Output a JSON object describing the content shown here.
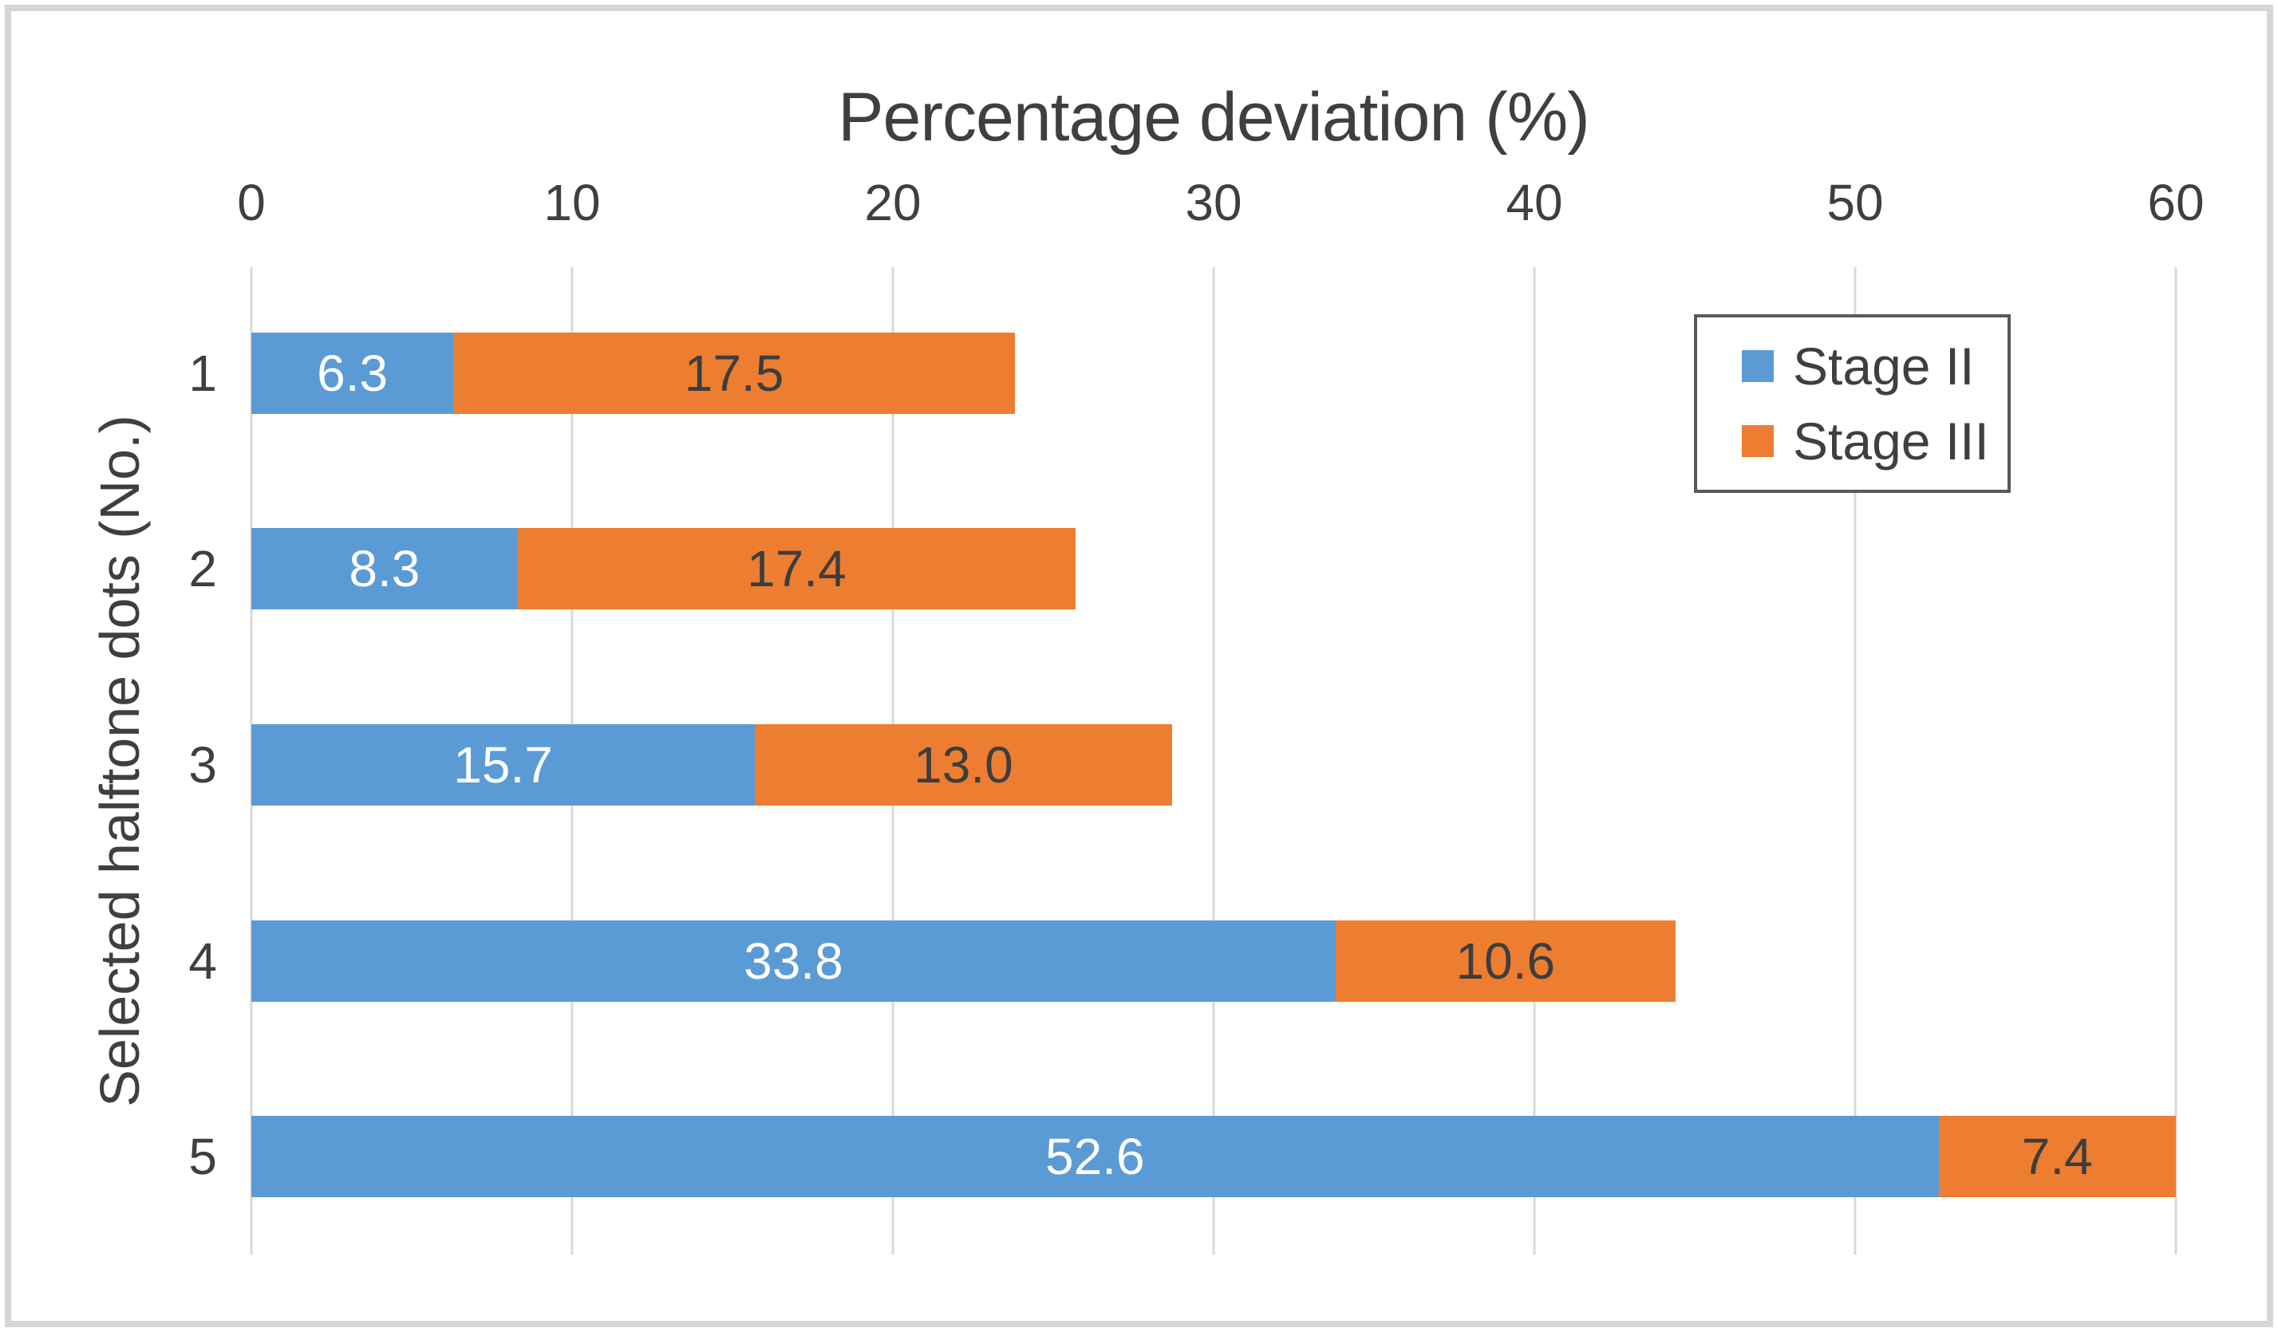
{
  "chart_data": {
    "type": "bar",
    "orientation": "horizontal-stacked",
    "title": "Percentage deviation (%)",
    "xlabel": "Percentage deviation (%)",
    "ylabel": "Selected halftone dots (No.)",
    "categories": [
      "1",
      "2",
      "3",
      "4",
      "5"
    ],
    "series": [
      {
        "name": "Stage II",
        "color": "#5B9BD5",
        "label_color": "#ffffff",
        "values": [
          6.3,
          8.3,
          15.7,
          33.8,
          52.6
        ]
      },
      {
        "name": "Stage III",
        "color": "#ED7D31",
        "label_color": "#3d3d3d",
        "values": [
          17.5,
          17.4,
          13.0,
          10.6,
          7.4
        ]
      }
    ],
    "xlim": [
      0,
      60
    ],
    "xticks": [
      0,
      10,
      20,
      30,
      40,
      50,
      60
    ],
    "grid": true,
    "data_labels": true,
    "data_label_decimals": 1,
    "legend_position": "upper-right",
    "gridline_color": "#d9d9d9",
    "text_color": "#3f3f3f",
    "legend_border_color": "#595959",
    "figure_border_color": "#d6d6d6"
  }
}
